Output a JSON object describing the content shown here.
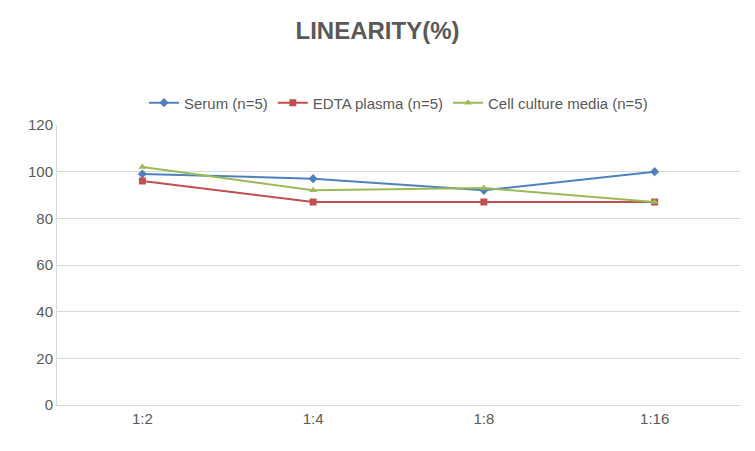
{
  "chart_data": {
    "type": "line",
    "title": "LINEARITY(%)",
    "categories": [
      "1:2",
      "1:4",
      "1:8",
      "1:16"
    ],
    "series": [
      {
        "name": "Serum (n=5)",
        "color": "#4f81bd",
        "marker": "diamond",
        "values": [
          99,
          97,
          92,
          100
        ]
      },
      {
        "name": "EDTA plasma (n=5)",
        "color": "#c0504d",
        "marker": "square",
        "values": [
          96,
          87,
          87,
          87
        ]
      },
      {
        "name": "Cell culture media (n=5)",
        "color": "#9bbb59",
        "marker": "triangle-up",
        "values": [
          102,
          92,
          93,
          87
        ]
      }
    ],
    "ylim": [
      0,
      120
    ],
    "yticks": [
      0,
      20,
      40,
      60,
      80,
      100,
      120
    ],
    "grid": true,
    "legend": "top"
  }
}
